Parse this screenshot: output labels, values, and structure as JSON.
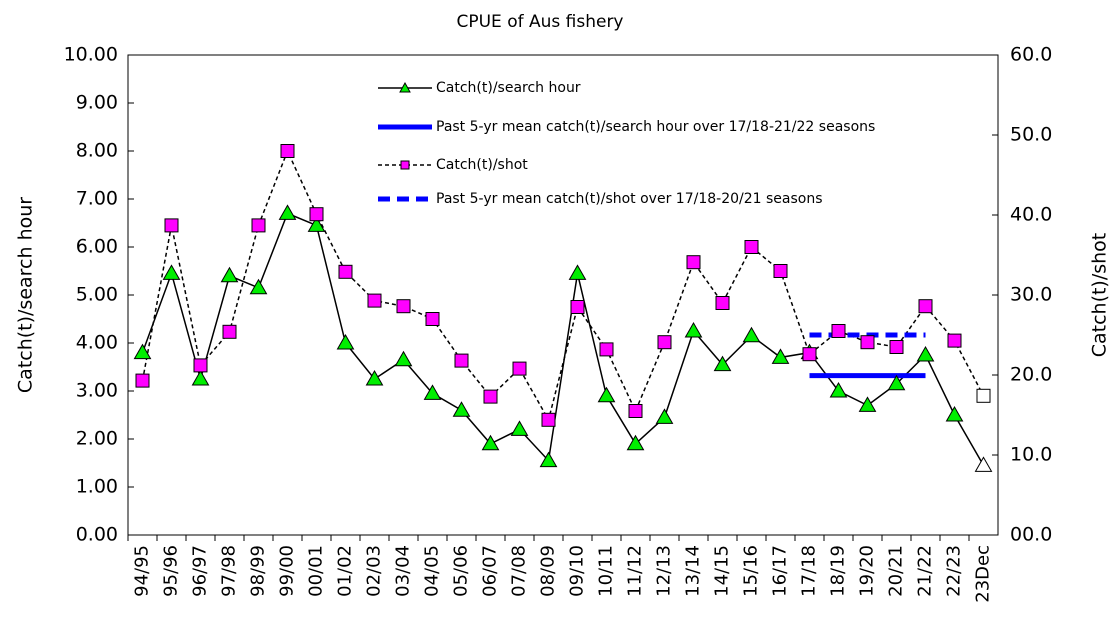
{
  "chart_data": {
    "type": "line",
    "title": "CPUE of Aus fishery",
    "y_label": "Catch(t)/search hour",
    "y2_label": "Catch(t)/shot",
    "categories": [
      "94/95",
      "95/96",
      "96/97",
      "97/98",
      "98/99",
      "99/00",
      "00/01",
      "01/02",
      "02/03",
      "03/04",
      "04/05",
      "05/06",
      "06/07",
      "07/08",
      "08/09",
      "09/10",
      "10/11",
      "11/12",
      "12/13",
      "13/14",
      "14/15",
      "15/16",
      "16/17",
      "17/18",
      "18/19",
      "19/20",
      "20/21",
      "21/22",
      "22/23",
      "23Dec"
    ],
    "ylim": [
      0,
      10
    ],
    "yticks": [
      {
        "value": 0,
        "label": "0.00"
      },
      {
        "value": 1,
        "label": "1.00"
      },
      {
        "value": 2,
        "label": "2.00"
      },
      {
        "value": 3,
        "label": "3.00"
      },
      {
        "value": 4,
        "label": "4.00"
      },
      {
        "value": 5,
        "label": "5.00"
      },
      {
        "value": 6,
        "label": "6.00"
      },
      {
        "value": 7,
        "label": "7.00"
      },
      {
        "value": 8,
        "label": "8.00"
      },
      {
        "value": 9,
        "label": "9.00"
      },
      {
        "value": 10,
        "label": "10.00"
      }
    ],
    "y2lim": [
      0,
      60
    ],
    "y2ticks": [
      {
        "value": 0,
        "label": "00.0"
      },
      {
        "value": 10,
        "label": "10.0"
      },
      {
        "value": 20,
        "label": "20.0"
      },
      {
        "value": 30,
        "label": "30.0"
      },
      {
        "value": 40,
        "label": "40.0"
      },
      {
        "value": 50,
        "label": "50.0"
      },
      {
        "value": 60,
        "label": "60.0"
      }
    ],
    "grid": false,
    "legend": "top",
    "last_marker_color": "#ffffff",
    "series": [
      {
        "name": "Catch(t)/search hour",
        "color": "#000000",
        "marker": "triangle",
        "marker_color": "#00ee00",
        "axis": "y",
        "dashed": false,
        "values": [
          3.8,
          5.45,
          3.25,
          5.4,
          5.15,
          6.7,
          6.45,
          4.0,
          3.25,
          3.65,
          2.95,
          2.6,
          1.9,
          2.2,
          1.55,
          5.45,
          2.9,
          1.9,
          2.45,
          4.25,
          3.55,
          4.15,
          3.7,
          3.8,
          3.0,
          2.7,
          3.15,
          3.75,
          2.5,
          1.45
        ]
      },
      {
        "name": "Past 5-yr mean catch(t)/search hour over 17/18-21/22 seasons",
        "color": "#0000ff",
        "axis": "y",
        "dashed": false,
        "width": 5,
        "values": [
          null,
          null,
          null,
          null,
          null,
          null,
          null,
          null,
          null,
          null,
          null,
          null,
          null,
          null,
          null,
          null,
          null,
          null,
          null,
          null,
          null,
          null,
          null,
          3.32,
          3.32,
          3.32,
          3.32,
          3.32,
          null,
          null
        ]
      },
      {
        "name": "Catch(t)/shot",
        "color": "#000000",
        "marker": "square",
        "marker_color": "#ff00ff",
        "axis": "y2",
        "dashed": true,
        "values": [
          19.3,
          38.7,
          21.2,
          25.4,
          38.7,
          48.0,
          40.1,
          32.9,
          29.3,
          28.6,
          27.0,
          21.8,
          17.3,
          20.8,
          14.4,
          28.5,
          23.2,
          15.5,
          24.1,
          34.1,
          29.0,
          36.0,
          33.0,
          22.6,
          25.5,
          24.1,
          23.5,
          28.6,
          24.3,
          17.4
        ]
      },
      {
        "name": "Past 5-yr mean catch(t)/shot over 17/18-20/21 seasons",
        "color": "#0000ff",
        "axis": "y2",
        "dashed": true,
        "width": 5,
        "values": [
          null,
          null,
          null,
          null,
          null,
          null,
          null,
          null,
          null,
          null,
          null,
          null,
          null,
          null,
          null,
          null,
          null,
          null,
          null,
          null,
          null,
          null,
          null,
          25.0,
          25.0,
          25.0,
          25.0,
          25.0,
          null,
          null
        ]
      }
    ]
  }
}
